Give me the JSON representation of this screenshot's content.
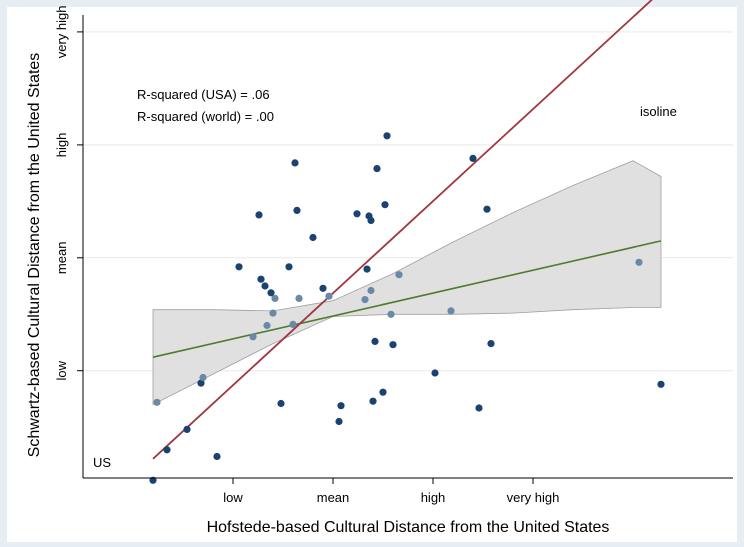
{
  "chart_data": {
    "type": "scatter",
    "xlabel": "Hofstede-based Cultural Distance from the United States",
    "ylabel": "Schwartz-based Cultural Distance from the United States",
    "xlim": [
      -1.25,
      2.0
    ],
    "ylim": [
      -1.95,
      2.15
    ],
    "x_ticks": [
      {
        "value": -0.5,
        "label": "low"
      },
      {
        "value": 0.0,
        "label": "mean"
      },
      {
        "value": 0.5,
        "label": "high"
      },
      {
        "value": 1.0,
        "label": "very high"
      }
    ],
    "y_ticks": [
      {
        "value": -1.0,
        "label": "low"
      },
      {
        "value": 0.0,
        "label": "mean"
      },
      {
        "value": 1.0,
        "label": "high"
      },
      {
        "value": 2.0,
        "label": "very high"
      }
    ],
    "grid": {
      "horizontal": true,
      "vertical": false
    },
    "annotations": [
      {
        "text": "R-squared (USA) = .06"
      },
      {
        "text": "R-squared (world) = .00"
      },
      {
        "text": "isoline"
      }
    ],
    "point_labels": [
      {
        "text": "US",
        "x": -0.9,
        "y": -1.97
      }
    ],
    "points": [
      {
        "x": -0.9,
        "y": -1.97,
        "c": "d"
      },
      {
        "x": -0.88,
        "y": -1.28,
        "c": "l"
      },
      {
        "x": -0.83,
        "y": -1.7,
        "c": "d"
      },
      {
        "x": -0.73,
        "y": -1.52,
        "c": "d"
      },
      {
        "x": -0.66,
        "y": -1.11,
        "c": "d"
      },
      {
        "x": -0.65,
        "y": -1.06,
        "c": "l"
      },
      {
        "x": -0.58,
        "y": -1.76,
        "c": "d"
      },
      {
        "x": -0.47,
        "y": -0.08,
        "c": "d"
      },
      {
        "x": -0.4,
        "y": -0.7,
        "c": "l"
      },
      {
        "x": -0.37,
        "y": 0.38,
        "c": "d"
      },
      {
        "x": -0.36,
        "y": -0.19,
        "c": "d"
      },
      {
        "x": -0.34,
        "y": -0.25,
        "c": "d"
      },
      {
        "x": -0.33,
        "y": -0.6,
        "c": "l"
      },
      {
        "x": -0.31,
        "y": -0.31,
        "c": "d"
      },
      {
        "x": -0.3,
        "y": -0.49,
        "c": "l"
      },
      {
        "x": -0.29,
        "y": -0.36,
        "c": "l"
      },
      {
        "x": -0.26,
        "y": -1.29,
        "c": "d"
      },
      {
        "x": -0.22,
        "y": -0.08,
        "c": "d"
      },
      {
        "x": -0.2,
        "y": -0.59,
        "c": "l"
      },
      {
        "x": -0.19,
        "y": 0.84,
        "c": "d"
      },
      {
        "x": -0.18,
        "y": 0.42,
        "c": "d"
      },
      {
        "x": -0.17,
        "y": -0.36,
        "c": "l"
      },
      {
        "x": -0.1,
        "y": 0.18,
        "c": "d"
      },
      {
        "x": -0.05,
        "y": -0.27,
        "c": "d"
      },
      {
        "x": -0.02,
        "y": -0.34,
        "c": "l"
      },
      {
        "x": 0.03,
        "y": -1.45,
        "c": "d"
      },
      {
        "x": 0.04,
        "y": -1.31,
        "c": "d"
      },
      {
        "x": 0.12,
        "y": 0.39,
        "c": "d"
      },
      {
        "x": 0.16,
        "y": -0.37,
        "c": "l"
      },
      {
        "x": 0.17,
        "y": -0.1,
        "c": "d"
      },
      {
        "x": 0.18,
        "y": 0.37,
        "c": "d"
      },
      {
        "x": 0.19,
        "y": 0.33,
        "c": "d"
      },
      {
        "x": 0.19,
        "y": -0.29,
        "c": "l"
      },
      {
        "x": 0.2,
        "y": -1.27,
        "c": "d"
      },
      {
        "x": 0.21,
        "y": -0.74,
        "c": "d"
      },
      {
        "x": 0.22,
        "y": 0.79,
        "c": "d"
      },
      {
        "x": 0.25,
        "y": -1.19,
        "c": "d"
      },
      {
        "x": 0.26,
        "y": 0.47,
        "c": "d"
      },
      {
        "x": 0.27,
        "y": 1.08,
        "c": "d"
      },
      {
        "x": 0.29,
        "y": -0.5,
        "c": "l"
      },
      {
        "x": 0.3,
        "y": -0.77,
        "c": "d"
      },
      {
        "x": 0.33,
        "y": -0.15,
        "c": "l"
      },
      {
        "x": 0.51,
        "y": -1.02,
        "c": "d"
      },
      {
        "x": 0.59,
        "y": -0.47,
        "c": "l"
      },
      {
        "x": 0.7,
        "y": 0.88,
        "c": "d"
      },
      {
        "x": 0.73,
        "y": -1.33,
        "c": "d"
      },
      {
        "x": 0.77,
        "y": 0.43,
        "c": "d"
      },
      {
        "x": 0.79,
        "y": -0.76,
        "c": "d"
      },
      {
        "x": 1.53,
        "y": -0.04,
        "c": "l"
      },
      {
        "x": 1.64,
        "y": -1.12,
        "c": "d"
      }
    ],
    "fit_line": {
      "x1": -0.9,
      "y1": -0.88,
      "x2": 1.64,
      "y2": 0.15
    },
    "confidence_band": {
      "x": [
        -0.9,
        -0.6,
        -0.3,
        0.0,
        0.3,
        0.6,
        0.9,
        1.2,
        1.5,
        1.64
      ],
      "lower": [
        -1.3,
        -1.03,
        -0.76,
        -0.52,
        -0.5,
        -0.5,
        -0.49,
        -0.46,
        -0.44,
        -0.44
      ],
      "upper": [
        -0.46,
        -0.46,
        -0.47,
        -0.38,
        -0.14,
        0.14,
        0.4,
        0.64,
        0.86,
        0.72
      ]
    },
    "isoline": {
      "x1": -0.9,
      "y1": -1.78,
      "x2": 1.64,
      "y2": 2.36
    }
  },
  "colors": {
    "point_dark": "#1a4470",
    "point_light": "#6b89a6",
    "fit_line": "#4f7a2f",
    "isoline": "#a13540",
    "band_fill": "#e0e0e0",
    "band_edge": "#a0a0a0",
    "grid": "#e9e9e9",
    "frame_bg": "#e6edf3"
  }
}
